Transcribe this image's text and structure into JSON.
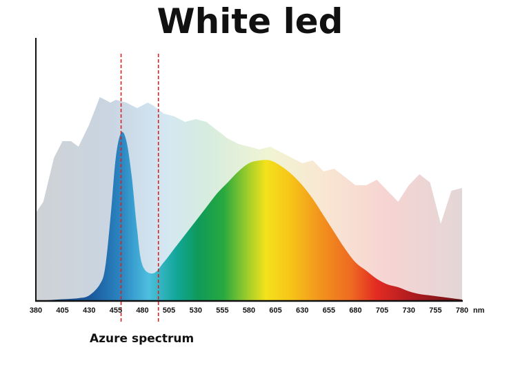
{
  "chart_data": {
    "type": "area",
    "title": "White led",
    "x_unit": "nm",
    "x_ticks": [
      380,
      405,
      430,
      455,
      480,
      505,
      530,
      555,
      580,
      605,
      630,
      655,
      680,
      705,
      730,
      755,
      780
    ],
    "xlim": [
      380,
      780
    ],
    "ylim": [
      0,
      1
    ],
    "series": [
      {
        "role": "background spectrum",
        "color": "#cfd3d6",
        "x": [
          380,
          387,
          397,
          405,
          413,
          420,
          430,
          440,
          450,
          455,
          465,
          475,
          485,
          490,
          500,
          510,
          520,
          530,
          540,
          550,
          560,
          570,
          580,
          590,
          600,
          610,
          620,
          630,
          640,
          650,
          660,
          670,
          680,
          690,
          700,
          710,
          720,
          730,
          740,
          750,
          760,
          770,
          780
        ],
        "values": [
          0.32,
          0.36,
          0.52,
          0.58,
          0.58,
          0.56,
          0.64,
          0.74,
          0.72,
          0.73,
          0.72,
          0.7,
          0.72,
          0.71,
          0.68,
          0.67,
          0.65,
          0.66,
          0.65,
          0.62,
          0.59,
          0.57,
          0.56,
          0.55,
          0.56,
          0.54,
          0.52,
          0.5,
          0.51,
          0.47,
          0.48,
          0.45,
          0.42,
          0.42,
          0.44,
          0.4,
          0.36,
          0.42,
          0.46,
          0.43,
          0.28,
          0.4,
          0.41
        ]
      },
      {
        "role": "white led spectrum",
        "x": [
          380,
          400,
          420,
          430,
          440,
          445,
          450,
          455,
          460,
          465,
          470,
          475,
          480,
          490,
          500,
          510,
          520,
          530,
          540,
          550,
          560,
          570,
          580,
          590,
          600,
          610,
          620,
          630,
          640,
          650,
          660,
          670,
          680,
          690,
          700,
          710,
          720,
          730,
          740,
          750,
          760,
          770,
          780
        ],
        "values": [
          0.0,
          0.005,
          0.01,
          0.02,
          0.06,
          0.12,
          0.3,
          0.52,
          0.61,
          0.58,
          0.45,
          0.26,
          0.13,
          0.1,
          0.14,
          0.19,
          0.24,
          0.29,
          0.34,
          0.39,
          0.43,
          0.47,
          0.5,
          0.51,
          0.51,
          0.49,
          0.46,
          0.42,
          0.37,
          0.31,
          0.25,
          0.19,
          0.14,
          0.11,
          0.08,
          0.06,
          0.05,
          0.035,
          0.025,
          0.02,
          0.015,
          0.01,
          0.005
        ]
      }
    ],
    "annotations": [
      {
        "text": "Azure spectrum",
        "range": [
          460,
          495
        ],
        "style": "dashed red vertical lines",
        "color": "#e0201d"
      }
    ]
  }
}
